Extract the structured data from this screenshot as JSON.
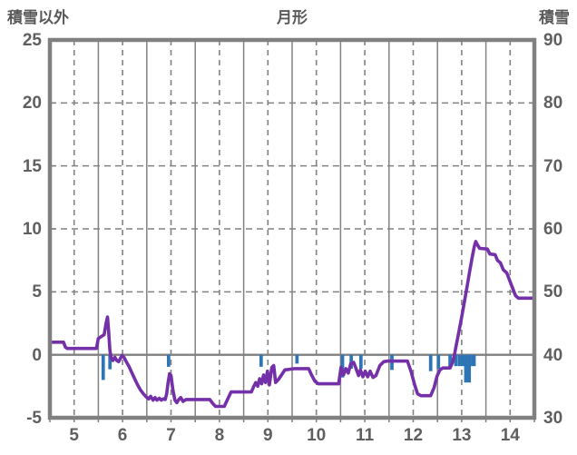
{
  "header": {
    "left_axis_title": "積雪以外",
    "chart_title": "月形",
    "right_axis_title": "積雪"
  },
  "chart_data": {
    "type": "line",
    "title": "月形",
    "x_axis": {
      "range": [
        4.5,
        14.5
      ],
      "ticks": [
        5,
        6,
        7,
        8,
        9,
        10,
        11,
        12,
        13,
        14
      ],
      "minor_tick_step": 0.5,
      "grid": "dashed vertical lines at labeled hours, solid vertical lines at half hours"
    },
    "y_axis_left": {
      "title": "積雪以外",
      "range": [
        -5,
        25
      ],
      "ticks": [
        25,
        20,
        15,
        10,
        5,
        0,
        "-5"
      ],
      "grid": "dashed horizontal lines every 5 units, solid line at 0"
    },
    "y_axis_right": {
      "title": "積雪",
      "range": [
        30,
        90
      ],
      "ticks": [
        90,
        80,
        70,
        60,
        50,
        40,
        30
      ]
    },
    "series": [
      {
        "name": "line-series",
        "type": "line",
        "color": "#7430A8",
        "points": [
          [
            4.5,
            1.0
          ],
          [
            4.78,
            1.0
          ],
          [
            4.82,
            0.6
          ],
          [
            4.86,
            0.5
          ],
          [
            5.46,
            0.5
          ],
          [
            5.5,
            1.3
          ],
          [
            5.56,
            1.45
          ],
          [
            5.62,
            1.6
          ],
          [
            5.66,
            2.5
          ],
          [
            5.69,
            3.0
          ],
          [
            5.71,
            2.0
          ],
          [
            5.74,
            0.3
          ],
          [
            5.77,
            -0.3
          ],
          [
            5.8,
            -0.45
          ],
          [
            5.84,
            -0.2
          ],
          [
            5.88,
            -0.45
          ],
          [
            5.92,
            -0.55
          ],
          [
            5.96,
            -0.25
          ],
          [
            5.99,
            -0.05
          ],
          [
            6.03,
            -0.2
          ],
          [
            6.07,
            -0.5
          ],
          [
            6.13,
            -0.9
          ],
          [
            6.19,
            -1.4
          ],
          [
            6.25,
            -1.9
          ],
          [
            6.31,
            -2.4
          ],
          [
            6.37,
            -2.8
          ],
          [
            6.43,
            -3.1
          ],
          [
            6.49,
            -3.35
          ],
          [
            6.54,
            -3.5
          ],
          [
            6.58,
            -3.3
          ],
          [
            6.63,
            -3.6
          ],
          [
            6.67,
            -3.4
          ],
          [
            6.71,
            -3.6
          ],
          [
            6.76,
            -3.45
          ],
          [
            6.8,
            -3.6
          ],
          [
            6.84,
            -3.5
          ],
          [
            6.88,
            -3.55
          ],
          [
            6.91,
            -3.1
          ],
          [
            6.94,
            -2.2
          ],
          [
            6.97,
            -1.5
          ],
          [
            7.0,
            -1.65
          ],
          [
            7.04,
            -2.8
          ],
          [
            7.08,
            -3.6
          ],
          [
            7.12,
            -3.8
          ],
          [
            7.16,
            -3.55
          ],
          [
            7.2,
            -3.4
          ],
          [
            7.25,
            -3.7
          ],
          [
            7.31,
            -3.55
          ],
          [
            7.8,
            -3.55
          ],
          [
            7.86,
            -3.85
          ],
          [
            7.92,
            -4.1
          ],
          [
            8.1,
            -4.1
          ],
          [
            8.16,
            -3.6
          ],
          [
            8.24,
            -2.95
          ],
          [
            8.66,
            -2.95
          ],
          [
            8.71,
            -2.5
          ],
          [
            8.75,
            -2.2
          ],
          [
            8.79,
            -2.5
          ],
          [
            8.83,
            -1.9
          ],
          [
            8.87,
            -2.3
          ],
          [
            8.91,
            -1.6
          ],
          [
            8.95,
            -2.2
          ],
          [
            8.99,
            -1.3
          ],
          [
            9.03,
            -2.4
          ],
          [
            9.08,
            -1.0
          ],
          [
            9.12,
            -0.85
          ],
          [
            9.16,
            -2.2
          ],
          [
            9.22,
            -1.95
          ],
          [
            9.28,
            -1.6
          ],
          [
            9.35,
            -1.2
          ],
          [
            9.45,
            -1.15
          ],
          [
            9.55,
            -1.1
          ],
          [
            9.84,
            -1.1
          ],
          [
            9.9,
            -1.6
          ],
          [
            9.97,
            -2.1
          ],
          [
            10.04,
            -2.3
          ],
          [
            10.46,
            -2.3
          ],
          [
            10.51,
            -1.0
          ],
          [
            10.56,
            -1.6
          ],
          [
            10.61,
            -1.1
          ],
          [
            10.66,
            -1.45
          ],
          [
            10.71,
            -0.7
          ],
          [
            10.77,
            -0.6
          ],
          [
            10.82,
            -1.1
          ],
          [
            10.87,
            -1.65
          ],
          [
            10.91,
            -1.2
          ],
          [
            10.96,
            -1.75
          ],
          [
            11.01,
            -1.3
          ],
          [
            11.06,
            -1.75
          ],
          [
            11.11,
            -1.3
          ],
          [
            11.17,
            -1.8
          ],
          [
            11.23,
            -1.65
          ],
          [
            11.31,
            -0.85
          ],
          [
            11.39,
            -0.55
          ],
          [
            11.46,
            -0.5
          ],
          [
            11.88,
            -0.5
          ],
          [
            11.96,
            -1.4
          ],
          [
            12.03,
            -2.4
          ],
          [
            12.09,
            -3.1
          ],
          [
            12.16,
            -3.25
          ],
          [
            12.36,
            -3.25
          ],
          [
            12.43,
            -2.6
          ],
          [
            12.49,
            -1.7
          ],
          [
            12.55,
            -1.2
          ],
          [
            12.61,
            -1.05
          ],
          [
            12.76,
            -1.05
          ],
          [
            12.81,
            -0.6
          ],
          [
            12.85,
            0.0
          ],
          [
            12.89,
            0.8
          ],
          [
            12.93,
            1.6
          ],
          [
            12.97,
            2.4
          ],
          [
            13.01,
            3.2
          ],
          [
            13.06,
            4.3
          ],
          [
            13.11,
            5.4
          ],
          [
            13.16,
            6.5
          ],
          [
            13.21,
            7.6
          ],
          [
            13.26,
            8.6
          ],
          [
            13.29,
            9.0
          ],
          [
            13.33,
            8.7
          ],
          [
            13.37,
            8.45
          ],
          [
            13.53,
            8.4
          ],
          [
            13.58,
            8.0
          ],
          [
            13.69,
            7.95
          ],
          [
            13.74,
            7.5
          ],
          [
            13.8,
            7.3
          ],
          [
            13.86,
            6.75
          ],
          [
            13.93,
            6.5
          ],
          [
            13.99,
            5.9
          ],
          [
            14.05,
            5.3
          ],
          [
            14.11,
            4.7
          ],
          [
            14.17,
            4.5
          ],
          [
            14.5,
            4.5
          ]
        ]
      },
      {
        "name": "bar-series",
        "type": "bar",
        "color": "#2E75B6",
        "baseline": 0,
        "points": [
          [
            5.6,
            -2.0
          ],
          [
            5.74,
            -1.15
          ],
          [
            6.95,
            -0.95
          ],
          [
            8.86,
            -0.95
          ],
          [
            9.6,
            -0.7
          ],
          [
            10.54,
            -1.8
          ],
          [
            10.72,
            -1.1
          ],
          [
            10.92,
            -1.1
          ],
          [
            11.56,
            -1.2
          ],
          [
            12.36,
            -1.3
          ],
          [
            12.52,
            -1.1
          ],
          [
            12.76,
            -1.0
          ],
          [
            12.88,
            -0.9
          ],
          [
            12.99,
            -0.9,
            0.14
          ],
          [
            13.12,
            -2.2,
            0.14
          ],
          [
            13.24,
            -0.9,
            0.1
          ]
        ]
      }
    ]
  },
  "colors": {
    "text": "#595959",
    "grid": "#828282",
    "frame": "#808080",
    "zero_line": "#808080",
    "line_series": "#7430A8",
    "bar_series": "#2E75B6",
    "background": "#ffffff"
  }
}
